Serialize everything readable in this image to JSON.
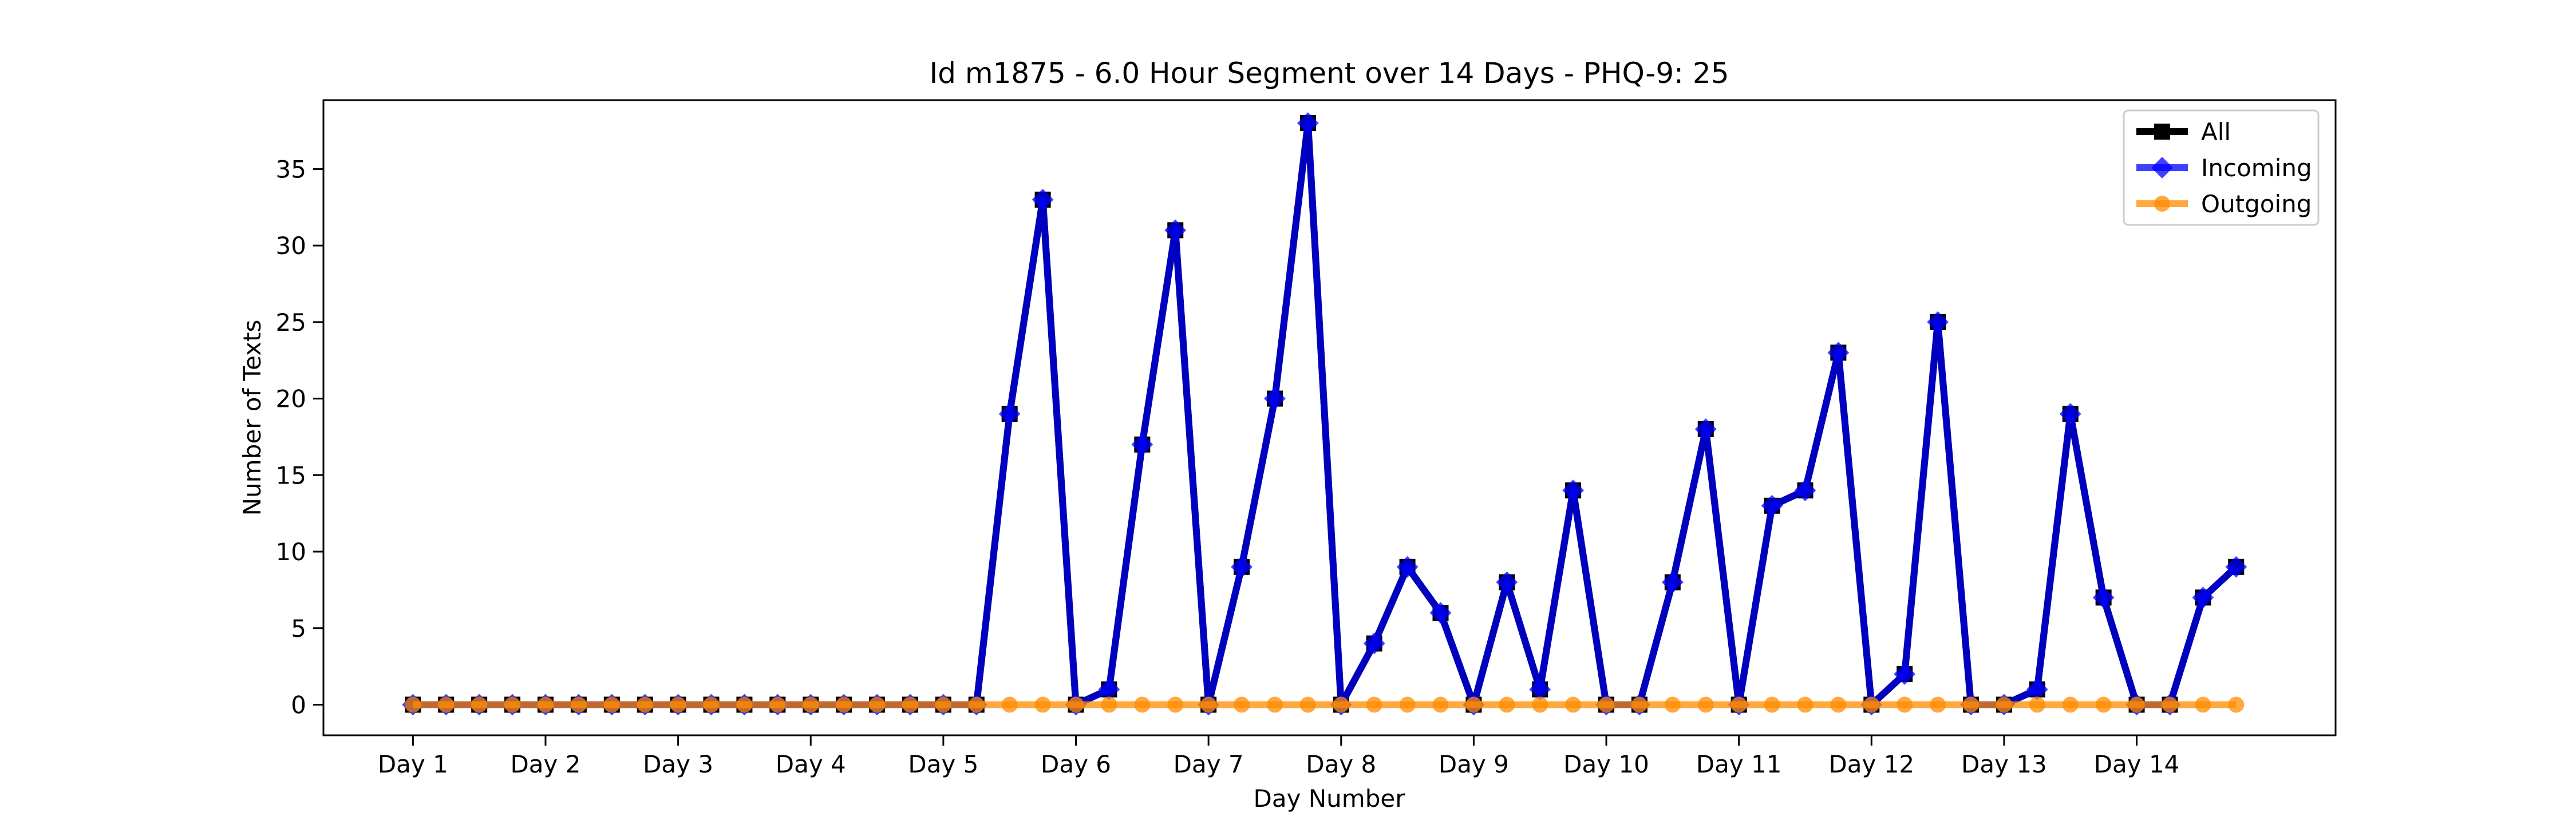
{
  "chart_data": {
    "type": "line",
    "title": "Id m1875 - 6.0 Hour Segment over 14 Days - PHQ-9: 25",
    "xlabel": "Day Number",
    "ylabel": "Number of Texts",
    "ylim": [
      -2,
      39.5
    ],
    "xlim": [
      -2.7,
      58
    ],
    "x_tick_positions": [
      0,
      4,
      8,
      12,
      16,
      20,
      24,
      28,
      32,
      36,
      40,
      44,
      48,
      52
    ],
    "x_tick_labels": [
      "Day 1",
      "Day 2",
      "Day 3",
      "Day 4",
      "Day 5",
      "Day 6",
      "Day 7",
      "Day 8",
      "Day 9",
      "Day 10",
      "Day 11",
      "Day 12",
      "Day 13",
      "Day 14"
    ],
    "y_ticks": [
      0,
      5,
      10,
      15,
      20,
      25,
      30,
      35
    ],
    "grid": false,
    "legend": "top-right",
    "series": [
      {
        "name": "All",
        "color": "#000000",
        "marker": "square",
        "values": [
          0,
          0,
          0,
          0,
          0,
          0,
          0,
          0,
          0,
          0,
          0,
          0,
          0,
          0,
          0,
          0,
          0,
          0,
          19,
          33,
          0,
          1,
          17,
          31,
          0,
          9,
          20,
          38,
          0,
          4,
          9,
          6,
          0,
          8,
          1,
          14,
          0,
          0,
          8,
          18,
          0,
          13,
          14,
          23,
          0,
          2,
          25,
          0,
          0,
          1,
          19,
          7,
          0,
          0,
          7,
          9
        ]
      },
      {
        "name": "Incoming",
        "color": "#0000ff",
        "marker": "diamond",
        "values": [
          0,
          0,
          0,
          0,
          0,
          0,
          0,
          0,
          0,
          0,
          0,
          0,
          0,
          0,
          0,
          0,
          0,
          0,
          19,
          33,
          0,
          1,
          17,
          31,
          0,
          9,
          20,
          38,
          0,
          4,
          9,
          6,
          0,
          8,
          1,
          14,
          0,
          0,
          8,
          18,
          0,
          13,
          14,
          23,
          0,
          2,
          25,
          0,
          0,
          1,
          19,
          7,
          0,
          0,
          7,
          9
        ]
      },
      {
        "name": "Outgoing",
        "color": "#ff8c00",
        "marker": "circle",
        "values": [
          0,
          0,
          0,
          0,
          0,
          0,
          0,
          0,
          0,
          0,
          0,
          0,
          0,
          0,
          0,
          0,
          0,
          0,
          0,
          0,
          0,
          0,
          0,
          0,
          0,
          0,
          0,
          0,
          0,
          0,
          0,
          0,
          0,
          0,
          0,
          0,
          0,
          0,
          0,
          0,
          0,
          0,
          0,
          0,
          0,
          0,
          0,
          0,
          0,
          0,
          0,
          0,
          0,
          0,
          0,
          0
        ]
      }
    ]
  }
}
